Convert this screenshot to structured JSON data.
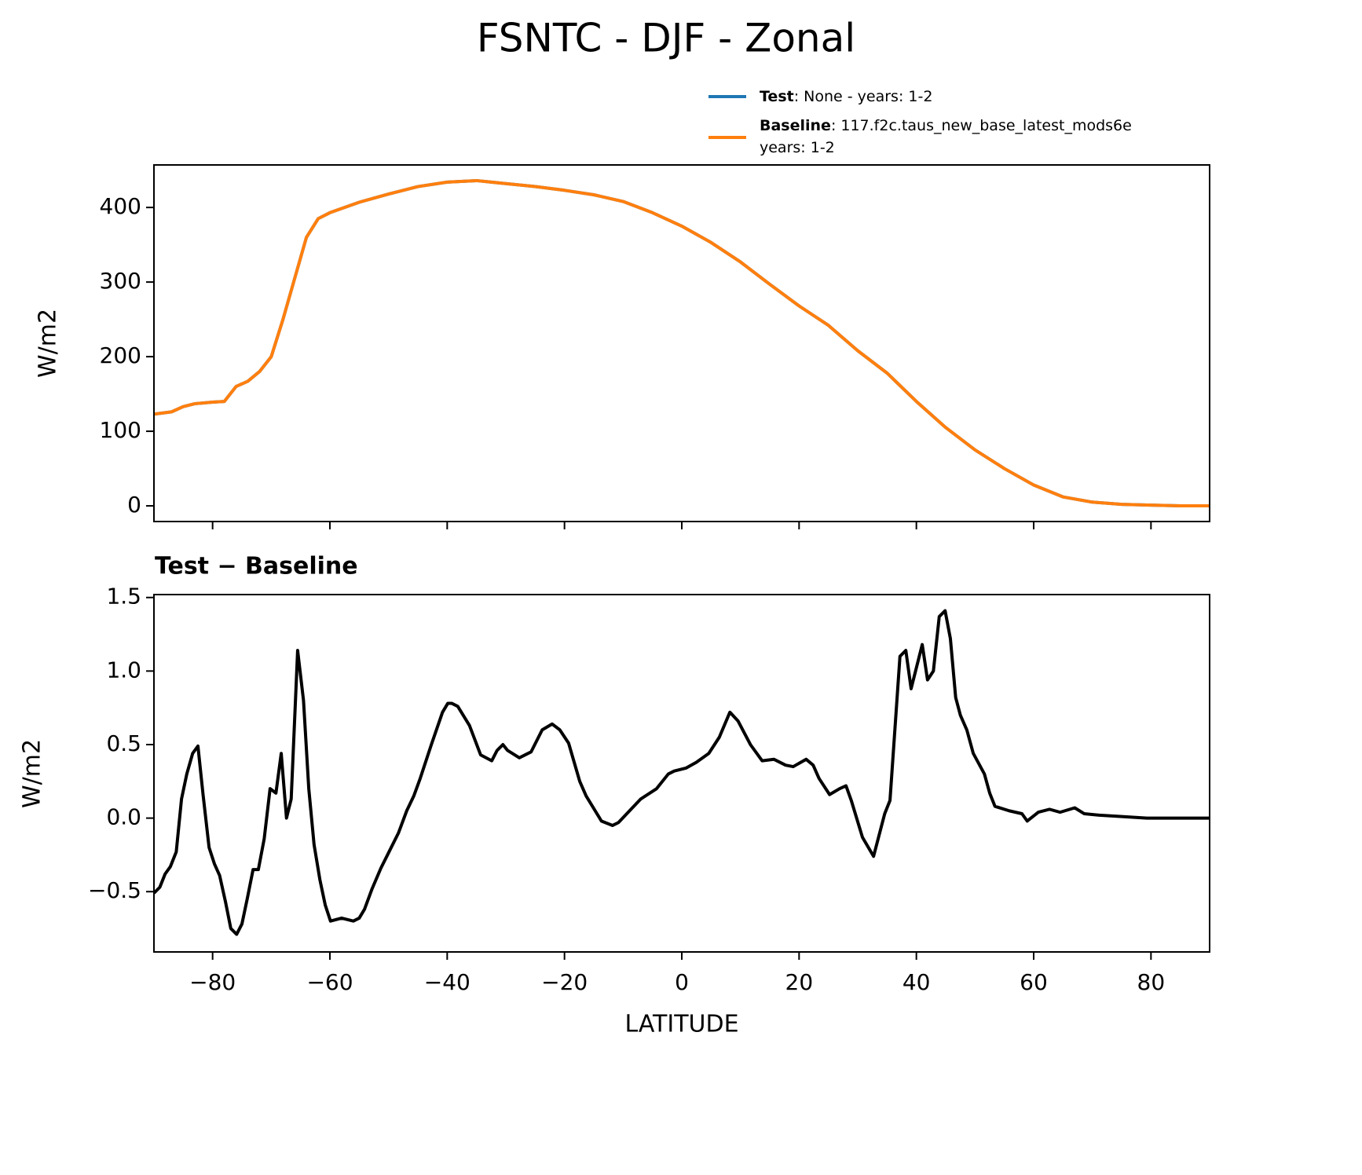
{
  "chart_data": [
    {
      "type": "line",
      "title": "FSNTC - DJF - Zonal",
      "ylabel": "W/m2",
      "x": [
        -90,
        -87,
        -85,
        -83,
        -80,
        -78,
        -76,
        -74,
        -72,
        -70,
        -68,
        -66,
        -64,
        -62,
        -60,
        -55,
        -50,
        -45,
        -40,
        -35,
        -30,
        -25,
        -20,
        -15,
        -10,
        -5,
        0,
        5,
        10,
        15,
        20,
        25,
        30,
        35,
        40,
        45,
        50,
        55,
        60,
        65,
        70,
        75,
        80,
        85,
        90
      ],
      "series": [
        {
          "name": "Test",
          "label_lines": [
            ": None - years: 1-2"
          ],
          "color": "#1f77b4",
          "values": [
            123,
            126,
            133,
            137,
            139,
            140,
            160,
            167,
            180,
            200,
            250,
            305,
            360,
            385,
            393,
            407,
            418,
            428,
            434,
            436,
            432,
            428,
            423,
            417,
            408,
            393,
            375,
            353,
            327,
            297,
            268,
            242,
            208,
            178,
            140,
            105,
            75,
            50,
            28,
            12,
            5,
            2,
            1,
            0,
            0
          ]
        },
        {
          "name": "Baseline",
          "label_lines": [
            ": 117.f2c.taus_new_base_latest_mods6e",
            "years: 1-2"
          ],
          "color": "#ff7f0e",
          "values": [
            123,
            126,
            133,
            137,
            139,
            140,
            160,
            167,
            180,
            200,
            250,
            305,
            360,
            385,
            393,
            407,
            418,
            428,
            434,
            436,
            432,
            428,
            423,
            417,
            408,
            393,
            375,
            353,
            327,
            297,
            268,
            242,
            208,
            178,
            140,
            105,
            75,
            50,
            28,
            12,
            5,
            2,
            1,
            0,
            0
          ]
        }
      ],
      "xlim": [
        -90,
        90
      ],
      "xticks": [
        -80,
        -60,
        -40,
        -20,
        0,
        20,
        40,
        60,
        80
      ],
      "ylim": [
        -21,
        457
      ],
      "yticks": [
        0,
        100,
        200,
        300,
        400
      ]
    },
    {
      "type": "line",
      "title": "Test − Baseline",
      "xlabel": "LATITUDE",
      "ylabel": "W/m2",
      "x": [
        -90,
        -89,
        -88.1,
        -87.2,
        -86.2,
        -85.3,
        -84.4,
        -83.4,
        -82.5,
        -81.6,
        -80.6,
        -79.7,
        -78.8,
        -77.8,
        -76.9,
        -75.9,
        -75,
        -74.1,
        -73.1,
        -72.2,
        -71.2,
        -70.2,
        -69.2,
        -68.3,
        -67.4,
        -66.6,
        -65.5,
        -64.5,
        -63.6,
        -62.7,
        -61.7,
        -60.8,
        -59.9,
        -58,
        -56,
        -55,
        -54.1,
        -52.8,
        -51.3,
        -49.8,
        -48.3,
        -46.9,
        -45.7,
        -44.6,
        -42.7,
        -40.8,
        -39.9,
        -39.2,
        -38.2,
        -36.2,
        -34.3,
        -32.4,
        -31.5,
        -30.5,
        -29.7,
        -27.7,
        -25.7,
        -23.8,
        -22.1,
        -20.8,
        -19.3,
        -17.4,
        -16.3,
        -13.7,
        -11.8,
        -10.8,
        -7,
        -4.3,
        -2.3,
        -1.3,
        0.7,
        2.5,
        4.6,
        6.4,
        8.2,
        9.6,
        11.7,
        13.7,
        15.7,
        17.7,
        19,
        21.2,
        22.4,
        23.4,
        25.2,
        26.9,
        28,
        28.9,
        30.8,
        32.7,
        34.6,
        35.5,
        37.2,
        38.2,
        39.1,
        41,
        41.9,
        42.9,
        43.9,
        44.9,
        45.8,
        46.7,
        47.5,
        48.6,
        49.7,
        51.6,
        52.5,
        53.4,
        55.8,
        58,
        58.9,
        60.8,
        62.7,
        64.5,
        67,
        68.6,
        71.2,
        75.3,
        79.3,
        90
      ],
      "series": [
        {
          "name": "Test − Baseline",
          "color": "#000000",
          "values": [
            -0.51,
            -0.47,
            -0.38,
            -0.33,
            -0.23,
            0.13,
            0.3,
            0.44,
            0.49,
            0.15,
            -0.2,
            -0.31,
            -0.39,
            -0.57,
            -0.75,
            -0.79,
            -0.72,
            -0.55,
            -0.35,
            -0.35,
            -0.14,
            0.2,
            0.17,
            0.44,
            0.0,
            0.13,
            1.14,
            0.8,
            0.2,
            -0.18,
            -0.42,
            -0.59,
            -0.7,
            -0.68,
            -0.7,
            -0.68,
            -0.62,
            -0.48,
            -0.34,
            -0.22,
            -0.1,
            0.05,
            0.15,
            0.27,
            0.5,
            0.72,
            0.78,
            0.78,
            0.76,
            0.63,
            0.43,
            0.39,
            0.46,
            0.5,
            0.46,
            0.41,
            0.45,
            0.6,
            0.64,
            0.6,
            0.51,
            0.25,
            0.15,
            -0.02,
            -0.05,
            -0.03,
            0.13,
            0.2,
            0.3,
            0.32,
            0.34,
            0.38,
            0.44,
            0.55,
            0.72,
            0.66,
            0.5,
            0.39,
            0.4,
            0.36,
            0.35,
            0.4,
            0.36,
            0.27,
            0.16,
            0.2,
            0.22,
            0.12,
            -0.13,
            -0.26,
            0.03,
            0.12,
            1.1,
            1.14,
            0.88,
            1.18,
            0.94,
            1.0,
            1.37,
            1.41,
            1.22,
            0.82,
            0.7,
            0.6,
            0.44,
            0.3,
            0.17,
            0.08,
            0.05,
            0.03,
            -0.02,
            0.04,
            0.06,
            0.04,
            0.07,
            0.03,
            0.02,
            0.01,
            0.0,
            0.0
          ]
        }
      ],
      "xlim": [
        -90,
        90
      ],
      "xticks": [
        {
          "value": -80,
          "label": "−80"
        },
        {
          "value": -60,
          "label": "−60"
        },
        {
          "value": -40,
          "label": "−40"
        },
        {
          "value": -20,
          "label": "−20"
        },
        0,
        20,
        40,
        60,
        80
      ],
      "ylim": [
        -0.91,
        1.52
      ],
      "yticks": [
        {
          "value": -0.5,
          "label": "−0.5"
        },
        {
          "value": 0,
          "label": "0.0"
        },
        0.5,
        {
          "value": 1,
          "label": "1.0"
        },
        1.5
      ]
    }
  ]
}
